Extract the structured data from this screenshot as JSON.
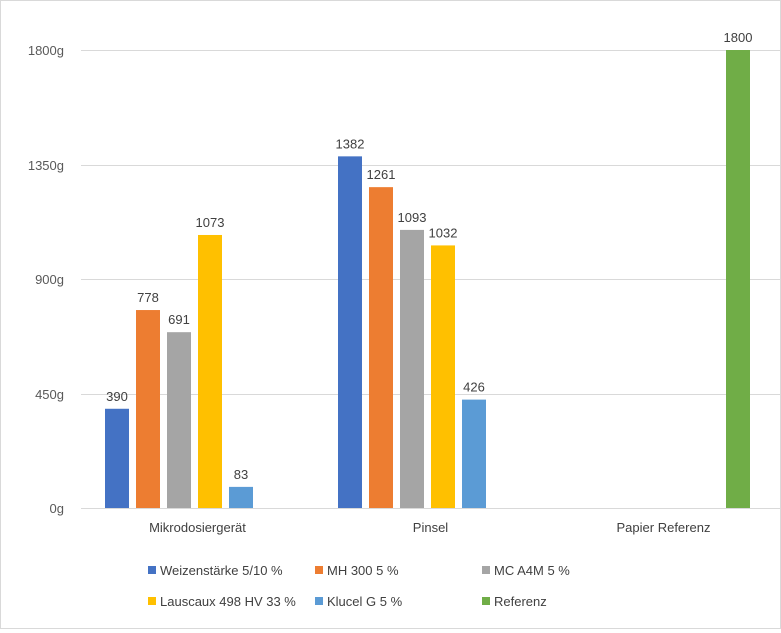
{
  "chart_data": {
    "type": "bar",
    "title": "",
    "xlabel": "",
    "ylabel": "",
    "ylim": [
      0,
      1800
    ],
    "y_ticks": [
      0,
      450,
      900,
      1350,
      1800
    ],
    "y_tick_labels": [
      "0g",
      "450g",
      "900g",
      "1350g",
      "1800g"
    ],
    "grid": true,
    "legend_position": "bottom",
    "categories": [
      "Mikrodosiergerät",
      "Pinsel",
      "Papier Referenz"
    ],
    "series": [
      {
        "name": "Weizenstärke 5/10 %",
        "color": "#4472c4",
        "values": [
          390,
          1382,
          null
        ]
      },
      {
        "name": "MH 300 5 %",
        "color": "#ed7d31",
        "values": [
          778,
          1261,
          null
        ]
      },
      {
        "name": "MC A4M 5 %",
        "color": "#a5a5a5",
        "values": [
          691,
          1093,
          null
        ]
      },
      {
        "name": "Lauscaux 498 HV 33 %",
        "color": "#ffc000",
        "values": [
          1073,
          1032,
          null
        ]
      },
      {
        "name": "Klucel G 5 %",
        "color": "#5b9bd5",
        "values": [
          83,
          426,
          null
        ]
      },
      {
        "name": "Referenz",
        "color": "#70ad47",
        "values": [
          null,
          null,
          1800
        ]
      }
    ]
  }
}
